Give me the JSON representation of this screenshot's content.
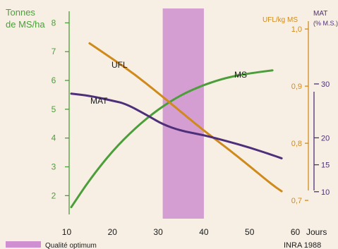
{
  "chart_data": {
    "type": "line",
    "x_axis": {
      "ticks": [
        10,
        20,
        30,
        40,
        50,
        60
      ],
      "unit_label": "Jours",
      "range": [
        9,
        63
      ]
    },
    "left_axis": {
      "title_line1": "Tonnes",
      "title_line2": "de MS/ha",
      "ticks": [
        2,
        3,
        4,
        5,
        6,
        7,
        8
      ],
      "range": [
        1.2,
        8.5
      ],
      "color": "#4c9e3a"
    },
    "ufl_axis": {
      "title": "UFL/kg MS",
      "ticks": [
        "0,7",
        "0,8",
        "0,9",
        "1,0"
      ],
      "tick_values": [
        0.7,
        0.8,
        0.9,
        1.0
      ],
      "range": [
        0.668,
        1.036
      ],
      "color": "#d08a1c"
    },
    "mat_axis": {
      "title_line1": "MAT",
      "title_line2": "(% M.S.)",
      "ticks": [
        "10",
        "15",
        "20",
        "30"
      ],
      "tick_values": [
        10,
        15,
        20,
        30
      ],
      "range": [
        5,
        44
      ],
      "color": "#4e2f7a"
    },
    "band": {
      "x_start": 31,
      "x_end": 40,
      "color": "#cf8fd0",
      "legend_label": "Qualité optimum"
    },
    "series": [
      {
        "name": "MS",
        "axis": "left",
        "color": "#4c9e3a",
        "x": [
          11,
          15,
          20,
          25,
          30,
          35,
          40,
          45,
          50,
          55
        ],
        "y": [
          1.6,
          2.55,
          3.55,
          4.35,
          5.0,
          5.5,
          5.85,
          6.1,
          6.25,
          6.35
        ]
      },
      {
        "name": "UFL",
        "axis": "ufl",
        "color": "#d08a1c",
        "x": [
          15,
          20,
          25,
          30,
          35,
          40,
          45,
          50,
          55,
          57
        ],
        "y": [
          0.975,
          0.948,
          0.92,
          0.888,
          0.855,
          0.822,
          0.792,
          0.76,
          0.727,
          0.716
        ]
      },
      {
        "name": "MAT",
        "axis": "mat",
        "color": "#4e2f7a",
        "x": [
          11,
          15,
          20,
          23,
          28,
          31,
          35,
          40,
          45,
          50,
          55,
          57
        ],
        "y": [
          28.2,
          27.8,
          26.9,
          26.3,
          24.0,
          22.5,
          21.3,
          20.5,
          19.4,
          18.2,
          16.8,
          16.2
        ]
      }
    ],
    "credit": "INRA 1988"
  }
}
